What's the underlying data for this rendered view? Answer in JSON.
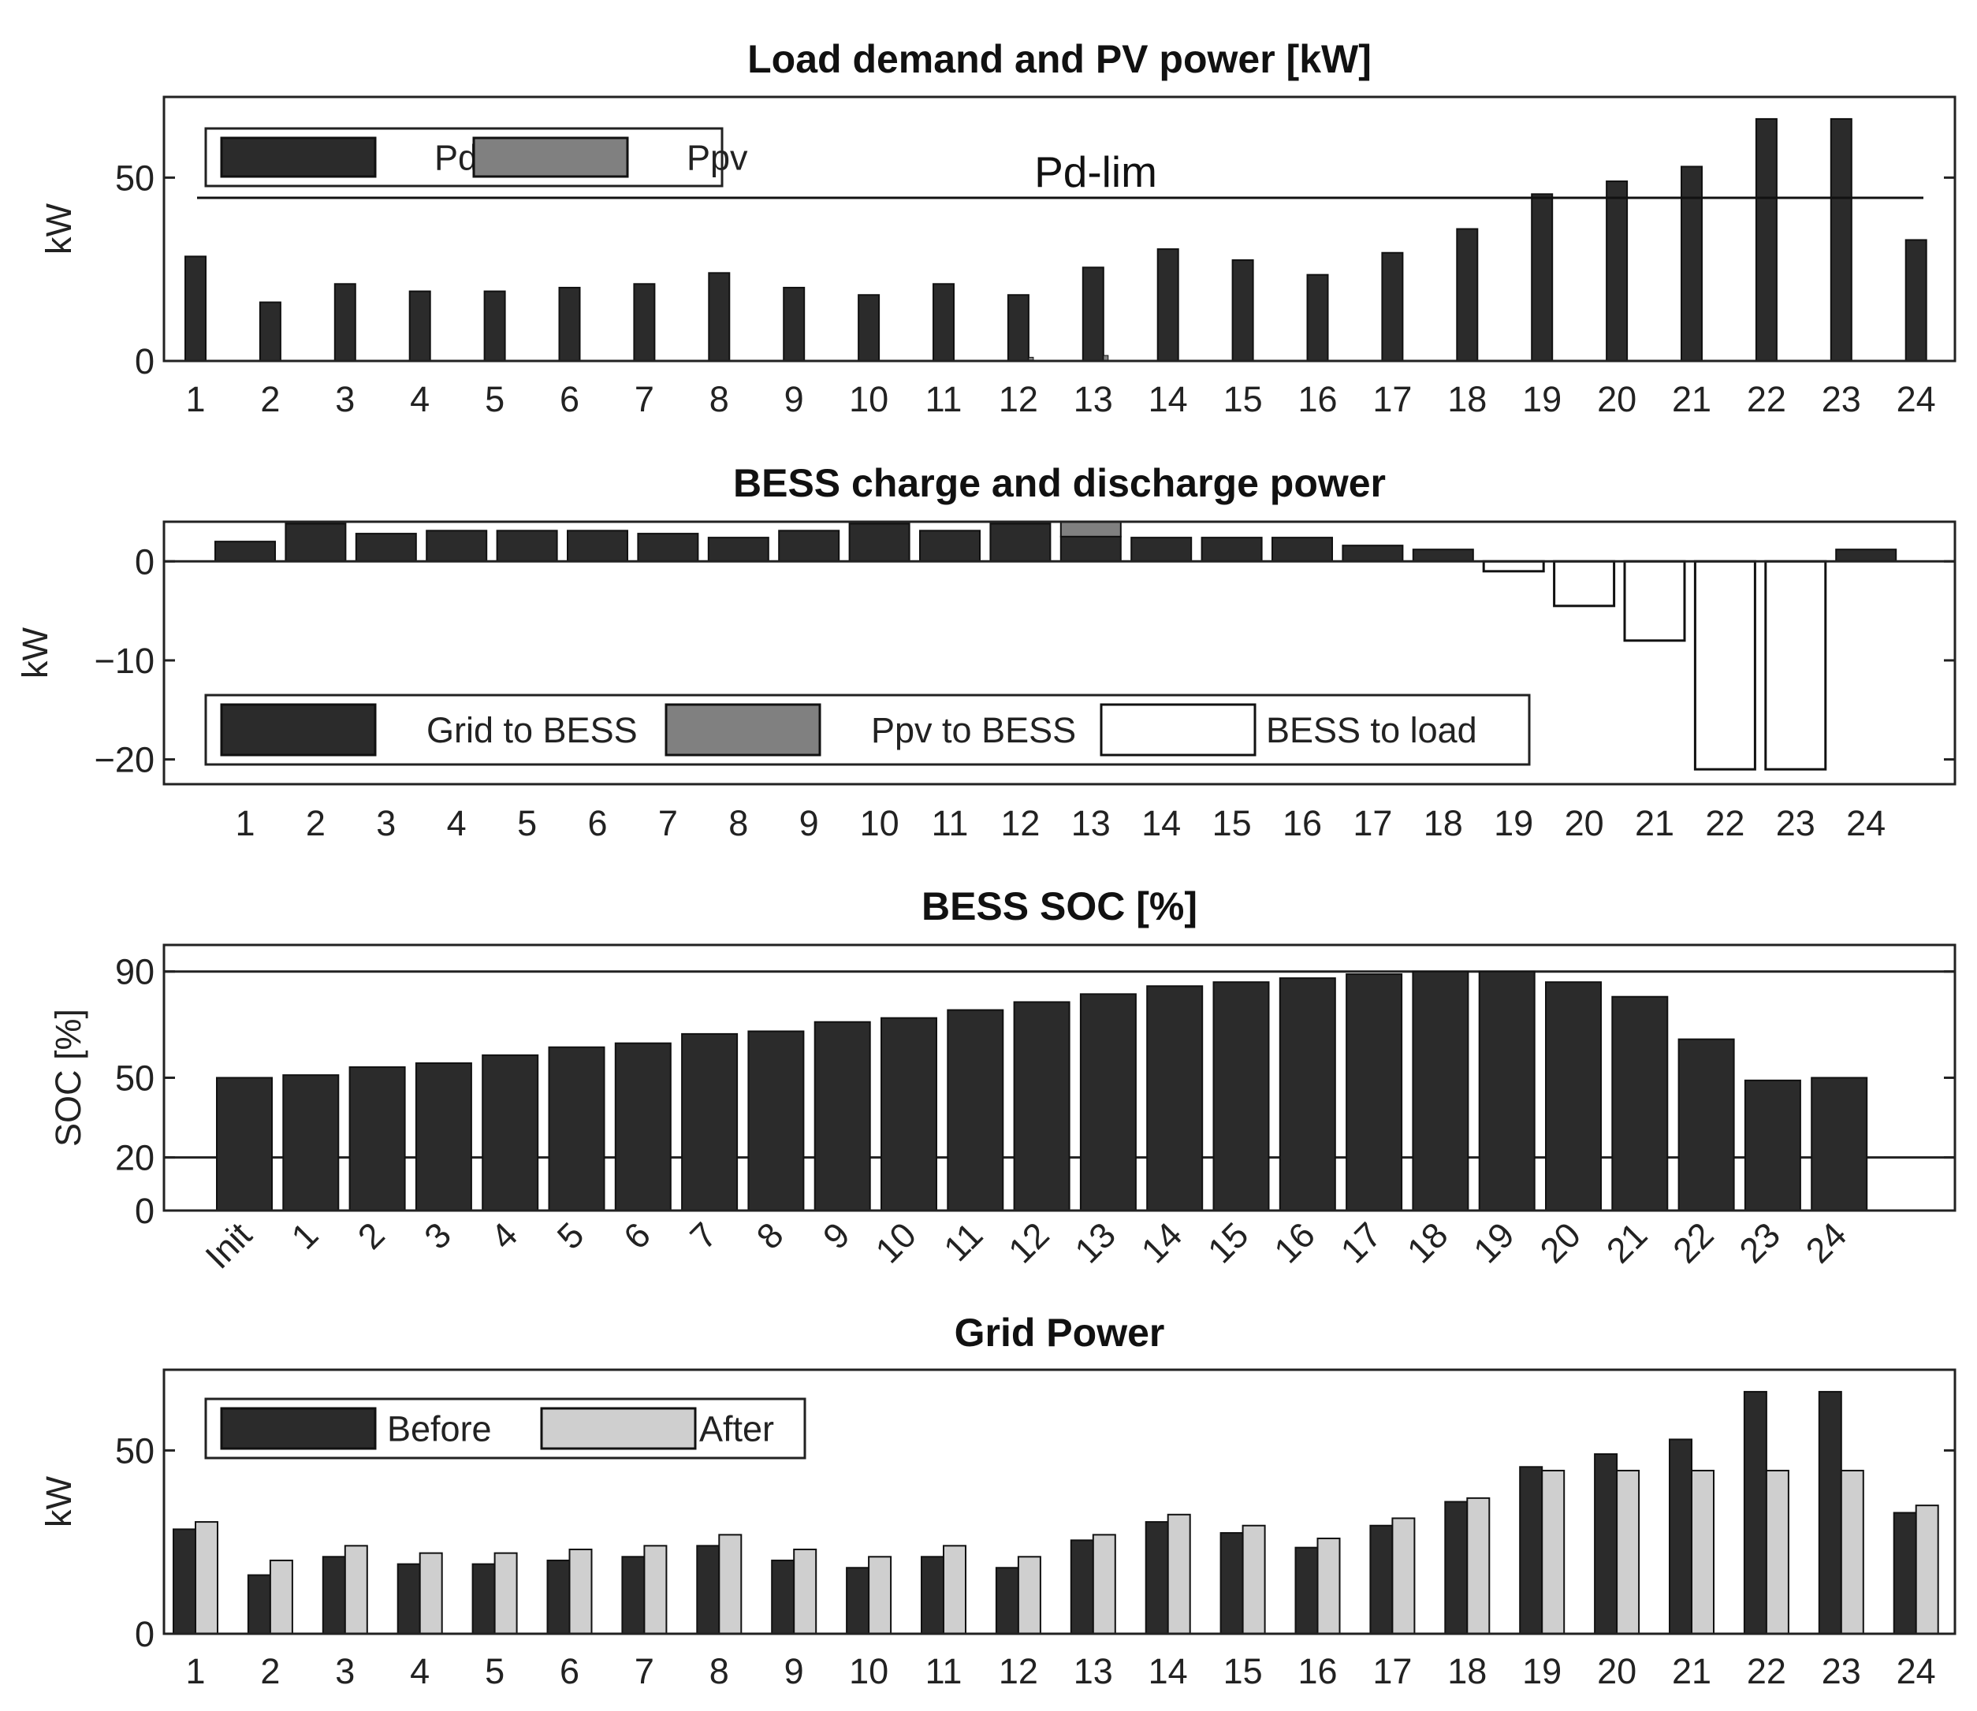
{
  "colors": {
    "dark": "#2b2b2b",
    "mid": "#808080",
    "light": "#cfcfcf",
    "white": "#ffffff",
    "axis": "#222222"
  },
  "chart_data": [
    {
      "id": "load-pv",
      "type": "bar",
      "title": "Load demand and PV power [kW]",
      "ylabel": "kW",
      "ylim": [
        0,
        72
      ],
      "yticks": [
        0,
        50
      ],
      "categories": [
        "1",
        "2",
        "3",
        "4",
        "5",
        "6",
        "7",
        "8",
        "9",
        "10",
        "11",
        "12",
        "13",
        "14",
        "15",
        "16",
        "17",
        "18",
        "19",
        "20",
        "21",
        "22",
        "23",
        "24"
      ],
      "series": [
        {
          "name": "Pd",
          "color": "#2b2b2b",
          "values": [
            28.5,
            16,
            21,
            19,
            19,
            20,
            21,
            24,
            20,
            18,
            21,
            18,
            25.5,
            30.5,
            27.5,
            23.5,
            29.5,
            36,
            45.5,
            49,
            53,
            66,
            66,
            33
          ]
        },
        {
          "name": "Ppv",
          "color": "#808080",
          "values": [
            0,
            0,
            0,
            0,
            0,
            0,
            0,
            0,
            0,
            0,
            0,
            1,
            1.5,
            0,
            0,
            0,
            0,
            0,
            0,
            0,
            0,
            0,
            0,
            0
          ]
        }
      ],
      "reference_line": {
        "label": "Pd-lim",
        "value": 44.5
      },
      "legend": "top-left"
    },
    {
      "id": "bess-power",
      "type": "bar",
      "title": "BESS charge and discharge power",
      "ylabel": "kW",
      "ylim": [
        -22.5,
        4
      ],
      "yticks": [
        0,
        -10,
        -20
      ],
      "ytick_labels": [
        "0",
        "−10",
        "−20"
      ],
      "categories": [
        "1",
        "2",
        "3",
        "4",
        "5",
        "6",
        "7",
        "8",
        "9",
        "10",
        "11",
        "12",
        "13",
        "14",
        "15",
        "16",
        "17",
        "18",
        "19",
        "20",
        "21",
        "22",
        "23",
        "24"
      ],
      "series": [
        {
          "name": "Grid to BESS",
          "color": "#2b2b2b",
          "values": [
            2,
            3.8,
            2.8,
            3.1,
            3.1,
            3.1,
            2.8,
            2.4,
            3.1,
            3.8,
            3.1,
            3.8,
            2.5,
            2.4,
            2.4,
            2.4,
            1.6,
            1.2,
            0,
            0,
            0,
            0,
            0,
            1.2
          ]
        },
        {
          "name": "Ppv to BESS",
          "color": "#808080",
          "values": [
            0,
            0,
            0,
            0,
            0,
            0,
            0,
            0,
            0,
            0,
            0,
            0,
            1.5,
            0,
            0,
            0,
            0,
            0,
            0,
            0,
            0,
            0,
            0,
            0
          ]
        },
        {
          "name": "BESS to load",
          "color": "#ffffff",
          "values": [
            0,
            0,
            0,
            0,
            0,
            0,
            0,
            0,
            0,
            0,
            0,
            0,
            0,
            0,
            0,
            0,
            0,
            0,
            -1,
            -4.5,
            -8,
            -21,
            -21,
            0
          ]
        }
      ],
      "legend": "bottom-left"
    },
    {
      "id": "bess-soc",
      "type": "bar",
      "title": "BESS SOC [%]",
      "ylabel": "SOC [%]",
      "ylim": [
        0,
        100
      ],
      "yticks": [
        0,
        20,
        50,
        90
      ],
      "categories": [
        "Init",
        "1",
        "2",
        "3",
        "4",
        "5",
        "6",
        "7",
        "8",
        "9",
        "10",
        "11",
        "12",
        "13",
        "14",
        "15",
        "16",
        "17",
        "18",
        "19",
        "20",
        "21",
        "22",
        "23",
        "24"
      ],
      "series": [
        {
          "name": "",
          "color": "#2b2b2b",
          "values": [
            50,
            51,
            54,
            55.5,
            58.5,
            61.5,
            63,
            66.5,
            67.5,
            71,
            72.5,
            75.5,
            78.5,
            81.5,
            84.5,
            86,
            87.5,
            89,
            90,
            90,
            86,
            80.5,
            64.5,
            49,
            50
          ]
        }
      ],
      "reference_lines": [
        20,
        90
      ],
      "xtick_rotation": 45
    },
    {
      "id": "grid-power",
      "type": "bar",
      "title": "Grid Power",
      "ylabel": "kW",
      "ylim": [
        0,
        72
      ],
      "yticks": [
        0,
        50
      ],
      "categories": [
        "1",
        "2",
        "3",
        "4",
        "5",
        "6",
        "7",
        "8",
        "9",
        "10",
        "11",
        "12",
        "13",
        "14",
        "15",
        "16",
        "17",
        "18",
        "19",
        "20",
        "21",
        "22",
        "23",
        "24"
      ],
      "series": [
        {
          "name": "Before",
          "color": "#2b2b2b",
          "values": [
            28.5,
            16,
            21,
            19,
            19,
            20,
            21,
            24,
            20,
            18,
            21,
            18,
            25.5,
            30.5,
            27.5,
            23.5,
            29.5,
            36,
            45.5,
            49,
            53,
            66,
            66,
            33
          ]
        },
        {
          "name": "After",
          "color": "#cfcfcf",
          "values": [
            30.5,
            20,
            24,
            22,
            22,
            23,
            24,
            27,
            23,
            21,
            24,
            21,
            27,
            32.5,
            29.5,
            26,
            31.5,
            37,
            44.5,
            44.5,
            44.5,
            44.5,
            44.5,
            35
          ]
        }
      ],
      "legend": "top-left"
    }
  ]
}
